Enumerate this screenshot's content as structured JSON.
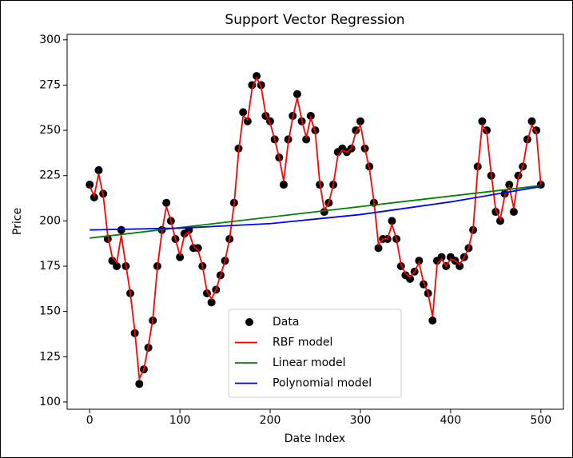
{
  "chart_data": {
    "type": "scatter",
    "title": "Support Vector Regression",
    "x_label": "Date Index",
    "y_label": "Price",
    "xlim": [
      -25,
      525
    ],
    "ylim": [
      96,
      303
    ],
    "xticks": [
      0,
      100,
      200,
      300,
      400,
      500
    ],
    "yticks": [
      100,
      125,
      150,
      175,
      200,
      225,
      250,
      275,
      300
    ],
    "series": [
      {
        "name": "Data",
        "type": "scatter",
        "color": "#000000",
        "x": [
          0,
          5,
          10,
          15,
          20,
          25,
          30,
          35,
          40,
          45,
          50,
          55,
          60,
          65,
          70,
          75,
          80,
          85,
          90,
          95,
          100,
          105,
          110,
          115,
          120,
          125,
          130,
          135,
          140,
          145,
          150,
          155,
          160,
          165,
          170,
          175,
          180,
          185,
          190,
          195,
          200,
          205,
          210,
          215,
          220,
          225,
          230,
          235,
          240,
          245,
          250,
          255,
          260,
          265,
          270,
          275,
          280,
          285,
          290,
          295,
          300,
          305,
          310,
          315,
          320,
          325,
          330,
          335,
          340,
          345,
          350,
          355,
          360,
          365,
          370,
          375,
          380,
          385,
          390,
          395,
          400,
          405,
          410,
          415,
          420,
          425,
          430,
          435,
          440,
          445,
          450,
          455,
          460,
          465,
          470,
          475,
          480,
          485,
          490,
          495,
          500
        ],
        "values": [
          220,
          213,
          228,
          215,
          190,
          178,
          175,
          195,
          175,
          160,
          138,
          110,
          118,
          130,
          145,
          175,
          195,
          210,
          200,
          190,
          180,
          193,
          195,
          185,
          185,
          175,
          160,
          155,
          162,
          170,
          178,
          190,
          210,
          240,
          260,
          255,
          275,
          280,
          275,
          258,
          255,
          245,
          235,
          220,
          245,
          258,
          270,
          255,
          245,
          258,
          250,
          220,
          205,
          210,
          220,
          238,
          240,
          238,
          240,
          250,
          255,
          240,
          230,
          210,
          185,
          190,
          190,
          200,
          190,
          175,
          170,
          168,
          172,
          178,
          165,
          160,
          145,
          178,
          180,
          175,
          180,
          178,
          175,
          180,
          185,
          195,
          230,
          255,
          250,
          225,
          205,
          200,
          215,
          220,
          205,
          225,
          230,
          245,
          255,
          250,
          220
        ]
      },
      {
        "name": "RBF model",
        "type": "line",
        "color": "#ff0000",
        "x": [
          0,
          5,
          10,
          15,
          20,
          25,
          30,
          35,
          40,
          45,
          50,
          55,
          60,
          65,
          70,
          75,
          80,
          85,
          90,
          95,
          100,
          105,
          110,
          115,
          120,
          125,
          130,
          135,
          140,
          145,
          150,
          155,
          160,
          165,
          170,
          175,
          180,
          185,
          190,
          195,
          200,
          205,
          210,
          215,
          220,
          225,
          230,
          235,
          240,
          245,
          250,
          255,
          260,
          265,
          270,
          275,
          280,
          285,
          290,
          295,
          300,
          305,
          310,
          315,
          320,
          325,
          330,
          335,
          340,
          345,
          350,
          355,
          360,
          365,
          370,
          375,
          380,
          385,
          390,
          395,
          400,
          405,
          410,
          415,
          420,
          425,
          430,
          435,
          440,
          445,
          450,
          455,
          460,
          465,
          470,
          475,
          480,
          485,
          490,
          495,
          500
        ],
        "values": [
          219,
          214,
          226,
          214,
          192,
          180,
          177,
          192,
          176,
          160,
          139,
          113,
          118,
          131,
          146,
          174,
          194,
          208,
          200,
          190,
          181,
          192,
          194,
          186,
          184,
          175,
          161,
          157,
          162,
          170,
          178,
          190,
          209,
          238,
          258,
          256,
          273,
          279,
          274,
          259,
          254,
          245,
          235,
          222,
          243,
          257,
          268,
          256,
          246,
          257,
          249,
          221,
          206,
          210,
          220,
          236,
          239,
          238,
          240,
          249,
          253,
          240,
          229,
          211,
          187,
          190,
          190,
          198,
          190,
          176,
          171,
          169,
          172,
          177,
          166,
          160,
          147,
          176,
          179,
          175,
          179,
          178,
          176,
          180,
          185,
          196,
          228,
          253,
          249,
          226,
          206,
          201,
          214,
          219,
          207,
          224,
          230,
          244,
          253,
          249,
          220
        ]
      },
      {
        "name": "Linear model",
        "type": "line",
        "color": "#008000",
        "x": [
          0,
          500
        ],
        "values": [
          190.5,
          219.5
        ]
      },
      {
        "name": "Polynomial model",
        "type": "line",
        "color": "#0000ff",
        "x": [
          0,
          100,
          200,
          300,
          400,
          500
        ],
        "values": [
          195,
          196,
          198.5,
          203.5,
          210.5,
          219
        ]
      }
    ]
  }
}
